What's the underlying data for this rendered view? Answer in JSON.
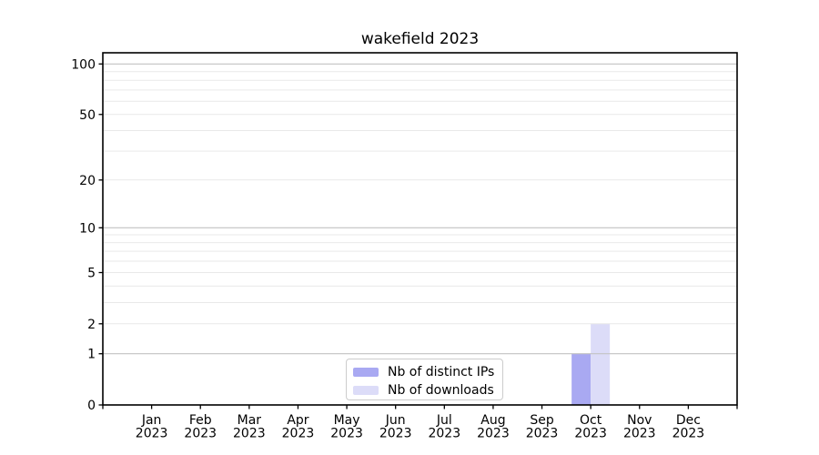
{
  "chart_data": {
    "type": "bar",
    "title": "wakefield 2023",
    "months": [
      "Jan",
      "Feb",
      "Mar",
      "Apr",
      "May",
      "Jun",
      "Jul",
      "Aug",
      "Sep",
      "Oct",
      "Nov",
      "Dec"
    ],
    "x_year": "2023",
    "series": [
      {
        "name": "Nb of distinct IPs",
        "color": "#a9a9f2",
        "values": [
          0,
          0,
          0,
          0,
          0,
          0,
          0,
          0,
          0,
          1,
          0,
          0
        ]
      },
      {
        "name": "Nb of downloads",
        "color": "#dcdcf8",
        "values": [
          0,
          0,
          0,
          0,
          0,
          0,
          0,
          0,
          0,
          2,
          0,
          0
        ]
      }
    ],
    "y_scale": "log10(1+x)",
    "ylim": [
      0,
      116.5
    ],
    "y_ticks": [
      0,
      1,
      2,
      5,
      10,
      20,
      50,
      100
    ],
    "y_decade_gridlines": [
      1,
      10,
      100
    ],
    "y_minor_gridlines": [
      2,
      3,
      4,
      5,
      6,
      7,
      8,
      9,
      20,
      30,
      40,
      50,
      60,
      70,
      80,
      90
    ],
    "grid": "horizontal",
    "legend_position": "inside-bottom-center-left",
    "colors": {
      "spine": "#000000",
      "decade_grid": "#c3c3c3",
      "minor_grid": "#e9e9e9",
      "text": "#000000"
    }
  }
}
